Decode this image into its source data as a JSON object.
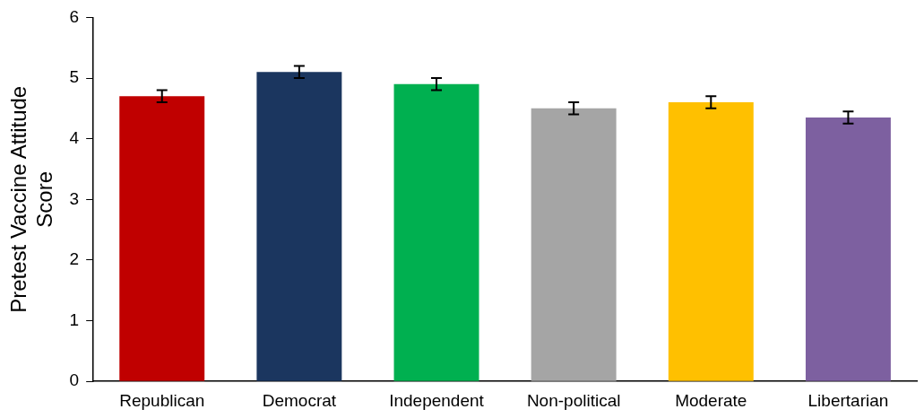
{
  "chart_data": {
    "type": "bar",
    "ylabel": "Pretest Vaccine Attitude Score",
    "categories": [
      "Republican",
      "Democrat",
      "Independent",
      "Non-political",
      "Moderate",
      "Libertarian"
    ],
    "values": [
      4.7,
      5.1,
      4.9,
      4.5,
      4.6,
      4.35
    ],
    "errors": [
      0.1,
      0.1,
      0.1,
      0.1,
      0.1,
      0.1
    ],
    "colors": [
      "#c00000",
      "#1b365f",
      "#00b050",
      "#a5a5a5",
      "#ffc000",
      "#7d60a0"
    ],
    "ylim": [
      0,
      6
    ],
    "yticks": [
      0,
      1,
      2,
      3,
      4,
      5,
      6
    ],
    "grid": false,
    "legend": false
  }
}
